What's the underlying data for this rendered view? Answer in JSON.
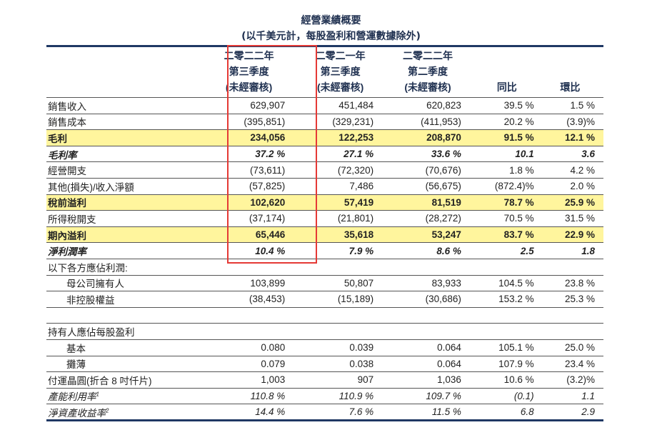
{
  "title": "經營業績概要",
  "subtitle": "(以千美元計，每股盈利和營運數據除外)",
  "columns": [
    [
      "二零二二年",
      "第三季度",
      "(未經審核)"
    ],
    [
      "二零二一年",
      "第三季度",
      "(未經審核)"
    ],
    [
      "二零二二年",
      "第二季度",
      "(未經審核)"
    ],
    [
      "同比"
    ],
    [
      "環比"
    ]
  ],
  "rows": [
    {
      "label": "銷售收入",
      "values": [
        "629,907",
        "451,484",
        "620,823",
        "39.5 %",
        "1.5 %"
      ]
    },
    {
      "label": "銷售成本",
      "values": [
        "(395,851)",
        "(329,231)",
        "(411,953)",
        "20.2 %",
        "(3.9)%"
      ]
    },
    {
      "label": "毛利",
      "values": [
        "234,056",
        "122,253",
        "208,870",
        "91.5 %",
        "12.1 %"
      ]
    },
    {
      "label": "毛利率",
      "values": [
        "37.2 %",
        "27.1 %",
        "33.6 %",
        "10.1",
        "3.6"
      ]
    },
    {
      "label": "經營開支",
      "values": [
        "(73,611)",
        "(72,320)",
        "(70,676)",
        "1.8 %",
        "4.2 %"
      ]
    },
    {
      "label": "其他(損失)/收入淨額",
      "values": [
        "(57,825)",
        "7,486",
        "(56,675)",
        "(872.4)%",
        "2.0 %"
      ]
    },
    {
      "label": "稅前溢利",
      "values": [
        "102,620",
        "57,419",
        "81,519",
        "78.7 %",
        "25.9 %"
      ]
    },
    {
      "label": "所得稅開支",
      "values": [
        "(37,174)",
        "(21,801)",
        "(28,272)",
        "70.5 %",
        "31.5 %"
      ]
    },
    {
      "label": "期內溢利",
      "values": [
        "65,446",
        "35,618",
        "53,247",
        "83.7 %",
        "22.9 %"
      ]
    },
    {
      "label": "淨利潤率",
      "values": [
        "10.4 %",
        "7.9 %",
        "8.6 %",
        "2.5",
        "1.8"
      ]
    },
    {
      "label": "以下各方應佔利潤:",
      "values": [
        "",
        "",
        "",
        "",
        ""
      ]
    },
    {
      "label": "母公司擁有人",
      "values": [
        "103,899",
        "50,807",
        "83,933",
        "104.5 %",
        "23.8 %"
      ]
    },
    {
      "label": "非控股權益",
      "values": [
        "(38,453)",
        "(15,189)",
        "(30,686)",
        "153.2 %",
        "25.3 %"
      ]
    },
    {
      "label": "",
      "values": [
        "",
        "",
        "",
        "",
        ""
      ]
    },
    {
      "label": "持有人應佔每股盈利",
      "values": [
        "",
        "",
        "",
        "",
        ""
      ]
    },
    {
      "label": "基本",
      "values": [
        "0.080",
        "0.039",
        "0.064",
        "105.1 %",
        "25.0 %"
      ]
    },
    {
      "label": "攤薄",
      "values": [
        "0.079",
        "0.038",
        "0.064",
        "107.9 %",
        "23.4 %"
      ]
    },
    {
      "label": "付運晶圓(折合 8 吋仟片)",
      "values": [
        "1,003",
        "907",
        "1,036",
        "10.6 %",
        "(3.2)%"
      ]
    },
    {
      "label": "產能利用率",
      "sup": "1",
      "values": [
        "110.8 %",
        "110.9 %",
        "109.7 %",
        "(0.1)",
        "1.1"
      ]
    },
    {
      "label": "淨資產收益率",
      "sup": "2",
      "values": [
        "14.4 %",
        "7.6 %",
        "11.5 %",
        "6.8",
        "2.9"
      ]
    }
  ],
  "highlight_color": "#fff59d",
  "highlight_box_color": "#e53935"
}
